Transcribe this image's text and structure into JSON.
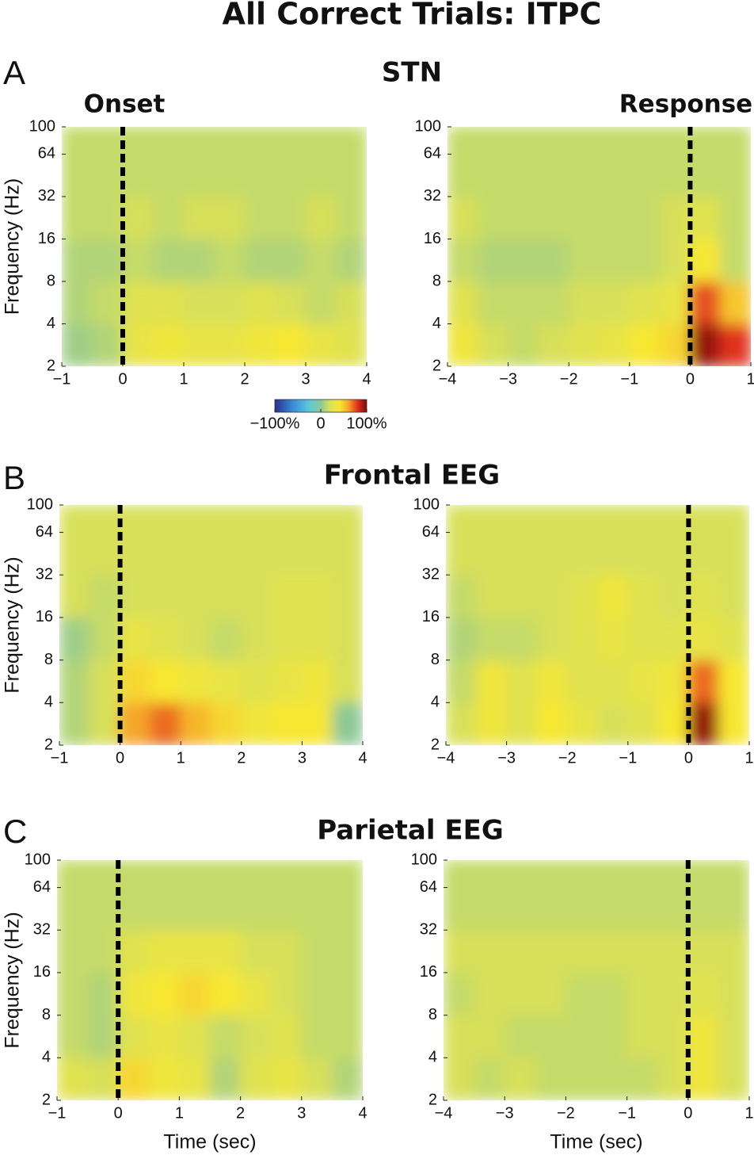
{
  "title": "All Correct Trials:  ITPC",
  "panel_labels": [
    "A",
    "B",
    "C"
  ],
  "section_titles": [
    "STN",
    "Frontal EEG",
    "Parietal EEG"
  ],
  "column_titles": [
    "Onset",
    "Response"
  ],
  "colorbar": {
    "lim": [
      -100,
      100
    ],
    "ticks": [
      {
        "value": -100,
        "label": "−100%"
      },
      0,
      {
        "value": 100,
        "label": "100%"
      }
    ]
  },
  "chart_data": [
    {
      "type": "heatmap",
      "ylabel": "Frequency (Hz)",
      "log_y": true,
      "marker_x": 0,
      "xlim": [
        -1,
        4
      ],
      "xticks": [
        {
          "value": -1,
          "label": "−1"
        },
        0,
        1,
        2,
        3,
        4
      ],
      "ylim": [
        2,
        100
      ],
      "yticks": [
        2,
        4,
        8,
        16,
        32,
        64,
        100
      ],
      "x_bins": [
        -1,
        -0.5,
        0,
        0.5,
        1,
        1.5,
        2,
        2.5,
        3,
        3.5,
        4
      ],
      "z": [
        [
          5,
          10,
          30,
          35,
          30,
          30,
          35,
          40,
          30,
          25
        ],
        [
          10,
          15,
          25,
          25,
          20,
          20,
          25,
          20,
          15,
          20
        ],
        [
          10,
          10,
          15,
          10,
          10,
          15,
          10,
          10,
          15,
          10
        ],
        [
          15,
          15,
          20,
          15,
          20,
          20,
          15,
          15,
          20,
          15
        ],
        [
          15,
          15,
          15,
          15,
          15,
          15,
          15,
          15,
          15,
          15
        ],
        [
          15,
          15,
          15,
          15,
          15,
          15,
          15,
          15,
          15,
          15
        ]
      ]
    },
    {
      "type": "heatmap",
      "log_y": true,
      "marker_x": 0,
      "xlim": [
        -4,
        1
      ],
      "xticks": [
        {
          "value": -4,
          "label": "−4"
        },
        {
          "value": -3,
          "label": "−3"
        },
        {
          "value": -2,
          "label": "−2"
        },
        {
          "value": -1,
          "label": "−1"
        },
        0,
        1
      ],
      "ylim": [
        2,
        100
      ],
      "yticks": [
        2,
        4,
        8,
        16,
        32,
        64,
        100
      ],
      "x_bins": [
        -4,
        -3.5,
        -3,
        -2.5,
        -2,
        -1.5,
        -1,
        -0.5,
        0,
        0.5,
        1
      ],
      "z": [
        [
          35,
          20,
          15,
          20,
          25,
          30,
          40,
          45,
          95,
          80
        ],
        [
          25,
          15,
          15,
          15,
          20,
          20,
          25,
          30,
          75,
          50
        ],
        [
          15,
          10,
          10,
          10,
          15,
          15,
          15,
          20,
          40,
          15
        ],
        [
          20,
          15,
          15,
          15,
          15,
          15,
          15,
          20,
          25,
          15
        ],
        [
          15,
          15,
          15,
          15,
          15,
          15,
          15,
          15,
          15,
          15
        ],
        [
          15,
          15,
          15,
          15,
          15,
          15,
          15,
          15,
          15,
          15
        ]
      ]
    },
    {
      "type": "heatmap",
      "ylabel": "Frequency (Hz)",
      "log_y": true,
      "marker_x": 0,
      "xlim": [
        -1,
        4
      ],
      "xticks": [
        {
          "value": -1,
          "label": "−1"
        },
        0,
        1,
        2,
        3,
        4
      ],
      "ylim": [
        2,
        100
      ],
      "yticks": [
        2,
        4,
        8,
        16,
        32,
        64,
        100
      ],
      "x_bins": [
        -1,
        -0.5,
        0,
        0.5,
        1,
        1.5,
        2,
        2.5,
        3,
        3.5,
        4
      ],
      "z": [
        [
          10,
          20,
          60,
          70,
          55,
          45,
          35,
          40,
          40,
          0
        ],
        [
          10,
          20,
          45,
          40,
          35,
          30,
          25,
          30,
          35,
          20
        ],
        [
          5,
          15,
          30,
          25,
          20,
          15,
          20,
          25,
          25,
          20
        ],
        [
          20,
          15,
          20,
          20,
          20,
          20,
          20,
          25,
          25,
          20
        ],
        [
          20,
          20,
          20,
          20,
          20,
          20,
          20,
          20,
          20,
          20
        ],
        [
          20,
          20,
          20,
          20,
          20,
          20,
          20,
          20,
          20,
          20
        ]
      ]
    },
    {
      "type": "heatmap",
      "log_y": true,
      "marker_x": 0,
      "xlim": [
        -4,
        1
      ],
      "xticks": [
        {
          "value": -4,
          "label": "−4"
        },
        {
          "value": -3,
          "label": "−3"
        },
        {
          "value": -2,
          "label": "−2"
        },
        {
          "value": -1,
          "label": "−1"
        },
        0,
        1
      ],
      "ylim": [
        2,
        100
      ],
      "yticks": [
        2,
        4,
        8,
        16,
        32,
        64,
        100
      ],
      "x_bins": [
        -4,
        -3.5,
        -3,
        -2.5,
        -2,
        -1.5,
        -1,
        -0.5,
        0,
        0.5,
        1
      ],
      "z": [
        [
          20,
          35,
          25,
          40,
          30,
          20,
          25,
          40,
          95,
          40
        ],
        [
          15,
          35,
          25,
          35,
          25,
          25,
          30,
          35,
          70,
          40
        ],
        [
          10,
          15,
          15,
          20,
          25,
          30,
          25,
          25,
          30,
          25
        ],
        [
          15,
          20,
          20,
          20,
          25,
          35,
          25,
          20,
          25,
          20
        ],
        [
          20,
          20,
          20,
          20,
          20,
          20,
          20,
          20,
          20,
          20
        ],
        [
          20,
          20,
          20,
          20,
          20,
          20,
          20,
          20,
          20,
          20
        ]
      ]
    },
    {
      "type": "heatmap",
      "ylabel": "Frequency (Hz)",
      "xlabel": "Time (sec)",
      "log_y": true,
      "marker_x": 0,
      "xlim": [
        -1,
        4
      ],
      "xticks": [
        {
          "value": -1,
          "label": "−1"
        },
        0,
        1,
        2,
        3,
        4
      ],
      "ylim": [
        2,
        100
      ],
      "yticks": [
        2,
        4,
        8,
        16,
        32,
        64,
        100
      ],
      "x_bins": [
        -1,
        -0.5,
        0,
        0.5,
        1,
        1.5,
        2,
        2.5,
        3,
        3.5,
        4
      ],
      "z": [
        [
          25,
          20,
          45,
          35,
          30,
          10,
          25,
          30,
          20,
          10
        ],
        [
          15,
          10,
          25,
          30,
          25,
          15,
          20,
          25,
          15,
          15
        ],
        [
          15,
          10,
          35,
          40,
          45,
          40,
          30,
          20,
          15,
          15
        ],
        [
          15,
          15,
          25,
          30,
          30,
          30,
          20,
          20,
          15,
          15
        ],
        [
          15,
          15,
          15,
          15,
          15,
          15,
          15,
          15,
          15,
          15
        ],
        [
          15,
          15,
          15,
          15,
          15,
          15,
          15,
          15,
          15,
          15
        ]
      ]
    },
    {
      "type": "heatmap",
      "xlabel": "Time (sec)",
      "log_y": true,
      "marker_x": 0,
      "xlim": [
        -4,
        1
      ],
      "xticks": [
        {
          "value": -4,
          "label": "−4"
        },
        {
          "value": -3,
          "label": "−3"
        },
        {
          "value": -2,
          "label": "−2"
        },
        {
          "value": -1,
          "label": "−1"
        },
        0,
        1
      ],
      "ylim": [
        2,
        100
      ],
      "yticks": [
        2,
        4,
        8,
        16,
        32,
        64,
        100
      ],
      "x_bins": [
        -4,
        -3.5,
        -3,
        -2.5,
        -2,
        -1.5,
        -1,
        -0.5,
        0,
        0.5,
        1
      ],
      "z": [
        [
          20,
          15,
          20,
          15,
          15,
          15,
          15,
          20,
          35,
          20
        ],
        [
          20,
          20,
          15,
          15,
          15,
          15,
          20,
          20,
          35,
          20
        ],
        [
          15,
          20,
          20,
          20,
          15,
          15,
          20,
          20,
          25,
          20
        ],
        [
          20,
          20,
          20,
          20,
          20,
          20,
          20,
          20,
          20,
          20
        ],
        [
          15,
          15,
          15,
          15,
          15,
          15,
          15,
          15,
          15,
          15
        ],
        [
          15,
          15,
          15,
          15,
          15,
          15,
          15,
          15,
          15,
          15
        ]
      ]
    }
  ]
}
